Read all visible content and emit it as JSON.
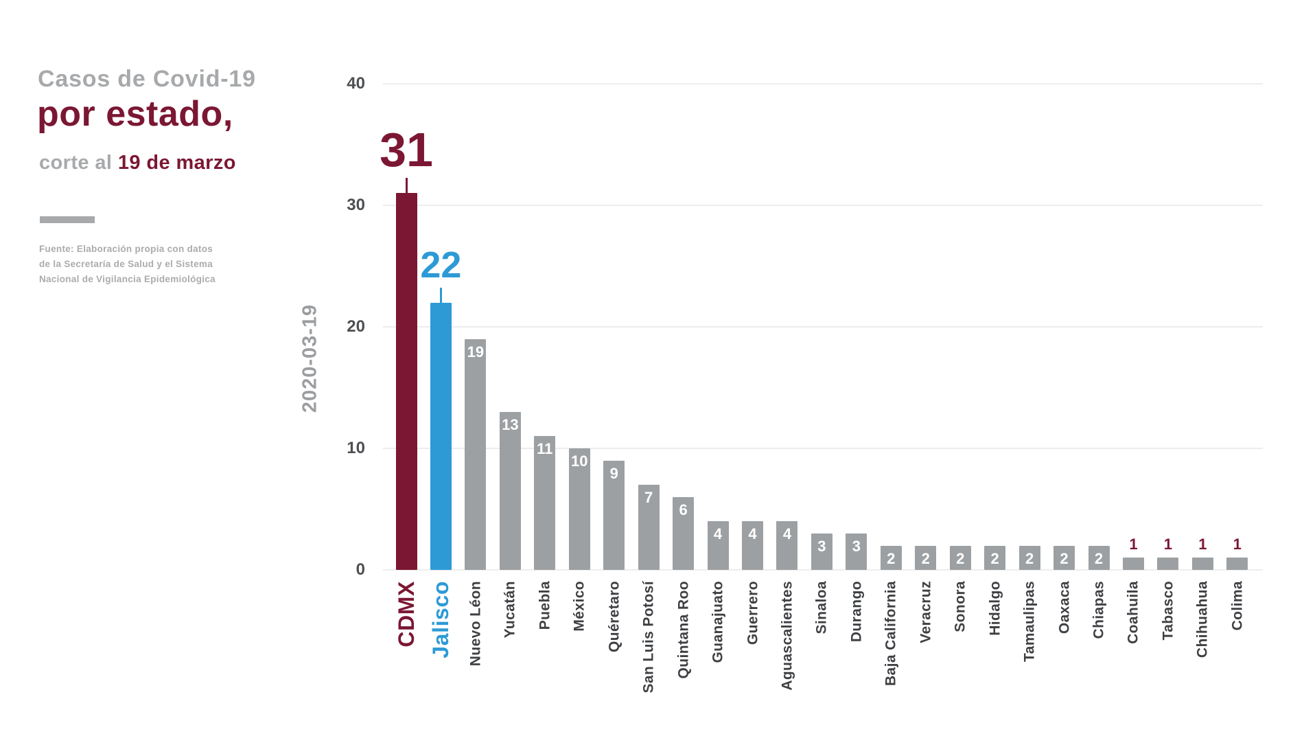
{
  "title": {
    "line1": "Casos de Covid-19",
    "line2": "por estado,",
    "line3_prefix": "corte al ",
    "line3_accent": "19 de marzo"
  },
  "source_lines": [
    "Fuente: Elaboración propia con datos",
    "de la Secretaría de Salud y el Sistema",
    "Nacional de Vigilancia Epidemiológica"
  ],
  "colors": {
    "accent": "#7b1733",
    "highlight": "#2d9ad6",
    "bar_default": "#9da0a2",
    "title_gray": "#a7a9ab",
    "source_gray": "#a9abad",
    "axis_tick": "#4d4f52",
    "x_label": "#3e4043",
    "date_label_gray": "#9b9da0",
    "grid": "#ededed",
    "inside_label": "#ffffff"
  },
  "chart_data": {
    "type": "bar",
    "title": "Casos de Covid-19 por estado, corte al 19 de marzo",
    "ylabel": "2020-03-19",
    "xlabel": "",
    "ylim": [
      0,
      40
    ],
    "yticks": [
      0,
      10,
      20,
      30,
      40
    ],
    "grid": "horizontal",
    "legend": "none",
    "categories": [
      "CDMX",
      "Jalisco",
      "Nuevo Léon",
      "Yucatán",
      "Puebla",
      "México",
      "Quéretaro",
      "San Luis Potosí",
      "Quintana Roo",
      "Guanajuato",
      "Guerrero",
      "Aguascalientes",
      "Sinaloa",
      "Durango",
      "Baja California",
      "Veracruz",
      "Sonora",
      "Hidalgo",
      "Tamaulipas",
      "Oaxaca",
      "Chiapas",
      "Coahuila",
      "Tabasco",
      "Chihuahua",
      "Colima"
    ],
    "values": [
      31,
      22,
      19,
      13,
      11,
      10,
      9,
      7,
      6,
      4,
      4,
      4,
      3,
      3,
      2,
      2,
      2,
      2,
      2,
      2,
      2,
      1,
      1,
      1,
      1
    ],
    "highlighted_bars": [
      {
        "index": 0,
        "category": "CDMX",
        "color_key": "accent",
        "value_label_position": "above"
      },
      {
        "index": 1,
        "category": "Jalisco",
        "color_key": "highlight",
        "value_label_position": "above"
      }
    ],
    "value_label_rules": {
      "above_large_indices": [
        0,
        1
      ],
      "inside_white_min_value": 2,
      "above_accent_value": 1
    }
  }
}
